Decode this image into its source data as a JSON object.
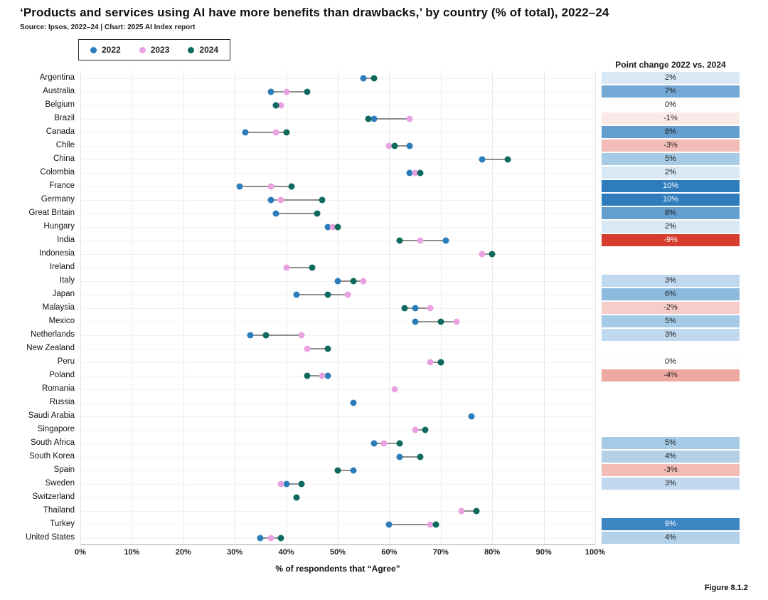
{
  "title": "‘Products and services using AI have more benefits than drawbacks,’ by country (% of total), 2022–24",
  "source": "Source: Ipsos, 2022–24 | Chart: 2025 AI Index report",
  "figure_label": "Figure 8.1.2",
  "change_column": {
    "header": "Point change 2022 vs. 2024"
  },
  "chart_data": {
    "type": "scatter",
    "title": "‘Products and services using AI have more benefits than drawbacks,’ by country (% of total), 2022–24",
    "xlabel": "% of respondents that “Agree”",
    "xlim": [
      0,
      100
    ],
    "x_ticks": [
      "0%",
      "10%",
      "20%",
      "30%",
      "40%",
      "50%",
      "60%",
      "70%",
      "80%",
      "90%",
      "100%"
    ],
    "grid": true,
    "legend_position": "top-left",
    "series_meta": [
      {
        "name": "2022",
        "color": "#2a7cba"
      },
      {
        "name": "2023",
        "color": "#e9a2e1"
      },
      {
        "name": "2024",
        "color": "#0d6a5d"
      }
    ],
    "categories": [
      "Argentina",
      "Australia",
      "Belgium",
      "Brazil",
      "Canada",
      "Chile",
      "China",
      "Colombia",
      "France",
      "Germany",
      "Great Britain",
      "Hungary",
      "India",
      "Indonesia",
      "Ireland",
      "Italy",
      "Japan",
      "Malaysia",
      "Mexico",
      "Netherlands",
      "New Zealand",
      "Peru",
      "Poland",
      "Romania",
      "Russia",
      "Saudi Arabia",
      "Singapore",
      "South Africa",
      "South Korea",
      "Spain",
      "Sweden",
      "Switzerland",
      "Thailand",
      "Turkey",
      "United States"
    ],
    "series": [
      {
        "name": "2022",
        "values": [
          55,
          37,
          38,
          57,
          32,
          64,
          78,
          64,
          31,
          37,
          38,
          48,
          71,
          null,
          null,
          50,
          42,
          65,
          65,
          33,
          null,
          70,
          48,
          null,
          53,
          76,
          null,
          57,
          62,
          53,
          40,
          null,
          null,
          60,
          35
        ]
      },
      {
        "name": "2023",
        "values": [
          null,
          40,
          39,
          64,
          38,
          60,
          null,
          65,
          37,
          39,
          null,
          49,
          66,
          78,
          40,
          55,
          52,
          68,
          73,
          43,
          44,
          68,
          47,
          61,
          null,
          null,
          65,
          59,
          null,
          null,
          39,
          null,
          74,
          68,
          37
        ]
      },
      {
        "name": "2024",
        "values": [
          57,
          44,
          38,
          56,
          40,
          61,
          83,
          66,
          41,
          47,
          46,
          50,
          62,
          80,
          45,
          53,
          48,
          63,
          70,
          36,
          48,
          70,
          44,
          null,
          null,
          null,
          67,
          62,
          66,
          50,
          43,
          42,
          77,
          69,
          39
        ]
      }
    ],
    "point_change": [
      "2%",
      "7%",
      "0%",
      "-1%",
      "8%",
      "-3%",
      "5%",
      "2%",
      "10%",
      "10%",
      "8%",
      "2%",
      "-9%",
      null,
      null,
      "3%",
      "6%",
      "-2%",
      "5%",
      "3%",
      null,
      "0%",
      "-4%",
      null,
      null,
      null,
      null,
      "5%",
      "4%",
      "-3%",
      "3%",
      null,
      null,
      "9%",
      "4%"
    ],
    "change_colors": {
      "10": "#2e7cbc",
      "9": "#3d86c3",
      "8": "#649fd0",
      "7": "#74aad5",
      "6": "#8cbade",
      "5": "#a6cbe7",
      "4": "#b3d2ea",
      "3": "#c0d9ee",
      "2": "#d9e8f5",
      "0": "#fcfdfe",
      "-1": "#fbe9e7",
      "-2": "#f6cdc8",
      "-3": "#f3bcb6",
      "-4": "#f0a9a2",
      "-9": "#d63d2f"
    },
    "change_text_white": [
      "10",
      "9",
      "-9"
    ]
  }
}
